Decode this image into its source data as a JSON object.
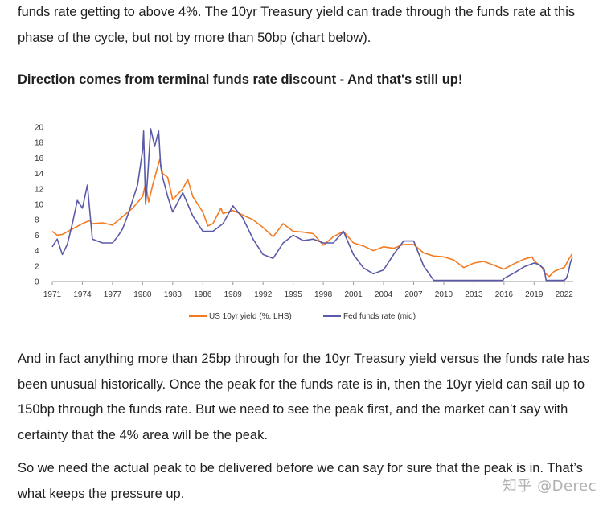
{
  "article": {
    "p_top": "funds rate getting to above 4%. The 10yr Treasury yield can trade through the funds rate at this phase of the cycle, but not by more than 50bp (chart below).",
    "heading": "Direction comes from terminal funds rate discount - And that's still up!",
    "p_mid": "And in fact anything more than 25bp through for the 10yr Treasury yield versus the funds rate has been unusual historically. Once the peak for the funds rate is in, then the 10yr yield can sail up to 150bp through the funds rate. But we need to see the peak first, and the market can’t say with certainty that the 4% area will be the peak.",
    "p_bot": "So we need the actual peak to be delivered before we can say for sure that the peak is in. That’s what keeps the pressure up.",
    "watermark": "知乎 @Derec"
  },
  "chart_data": {
    "type": "line",
    "title": "",
    "xlabel": "",
    "ylabel": "",
    "xlim": [
      1971,
      2022.9
    ],
    "ylim": [
      0,
      20
    ],
    "y_ticks": [
      0,
      2,
      4,
      6,
      8,
      10,
      12,
      14,
      16,
      18,
      20
    ],
    "x_ticks": [
      1971,
      1974,
      1977,
      1980,
      1983,
      1986,
      1989,
      1992,
      1995,
      1998,
      2001,
      2004,
      2007,
      2010,
      2013,
      2016,
      2019,
      2022
    ],
    "grid": false,
    "legend_position": "bottom-center",
    "series": [
      {
        "name": "US 10yr yield (%, LHS)",
        "color": "#f47b20",
        "points": [
          [
            1971,
            6.5
          ],
          [
            1971.5,
            6.0
          ],
          [
            1972,
            6.1
          ],
          [
            1973,
            6.8
          ],
          [
            1974,
            7.5
          ],
          [
            1974.7,
            7.9
          ],
          [
            1975,
            7.5
          ],
          [
            1976,
            7.6
          ],
          [
            1977,
            7.3
          ],
          [
            1978,
            8.4
          ],
          [
            1979,
            9.5
          ],
          [
            1980,
            11.0
          ],
          [
            1980.3,
            12.7
          ],
          [
            1980.6,
            10.3
          ],
          [
            1981,
            12.5
          ],
          [
            1981.7,
            15.8
          ],
          [
            1982,
            14.0
          ],
          [
            1982.5,
            13.5
          ],
          [
            1983,
            10.6
          ],
          [
            1984,
            12.0
          ],
          [
            1984.5,
            13.2
          ],
          [
            1985,
            11.0
          ],
          [
            1986,
            9.0
          ],
          [
            1986.5,
            7.2
          ],
          [
            1987,
            7.5
          ],
          [
            1987.8,
            9.5
          ],
          [
            1988,
            8.8
          ],
          [
            1989,
            9.2
          ],
          [
            1990,
            8.6
          ],
          [
            1991,
            8.0
          ],
          [
            1992,
            7.0
          ],
          [
            1993,
            5.8
          ],
          [
            1994,
            7.5
          ],
          [
            1995,
            6.5
          ],
          [
            1996,
            6.4
          ],
          [
            1997,
            6.2
          ],
          [
            1998,
            4.7
          ],
          [
            1999,
            5.8
          ],
          [
            2000,
            6.5
          ],
          [
            2001,
            5.0
          ],
          [
            2002,
            4.6
          ],
          [
            2003,
            4.0
          ],
          [
            2004,
            4.5
          ],
          [
            2005,
            4.3
          ],
          [
            2006,
            4.8
          ],
          [
            2007,
            4.8
          ],
          [
            2008,
            3.7
          ],
          [
            2009,
            3.3
          ],
          [
            2010,
            3.2
          ],
          [
            2011,
            2.8
          ],
          [
            2012,
            1.8
          ],
          [
            2013,
            2.4
          ],
          [
            2014,
            2.6
          ],
          [
            2015,
            2.1
          ],
          [
            2016,
            1.6
          ],
          [
            2017,
            2.3
          ],
          [
            2018,
            2.9
          ],
          [
            2018.8,
            3.2
          ],
          [
            2019,
            2.7
          ],
          [
            2019.8,
            1.8
          ],
          [
            2020,
            1.2
          ],
          [
            2020.5,
            0.65
          ],
          [
            2021,
            1.3
          ],
          [
            2021.5,
            1.6
          ],
          [
            2022,
            1.8
          ],
          [
            2022.5,
            3.0
          ],
          [
            2022.8,
            3.6
          ]
        ]
      },
      {
        "name": "Fed funds rate (mid)",
        "color": "#5a5aa8",
        "points": [
          [
            1971,
            4.5
          ],
          [
            1971.5,
            5.5
          ],
          [
            1972,
            3.5
          ],
          [
            1972.5,
            4.8
          ],
          [
            1973,
            7.5
          ],
          [
            1973.5,
            10.5
          ],
          [
            1974,
            9.5
          ],
          [
            1974.5,
            12.5
          ],
          [
            1975,
            5.5
          ],
          [
            1976,
            5.0
          ],
          [
            1977,
            5.0
          ],
          [
            1977.5,
            5.8
          ],
          [
            1978,
            6.8
          ],
          [
            1978.5,
            8.5
          ],
          [
            1979,
            10.5
          ],
          [
            1979.5,
            12.5
          ],
          [
            1980,
            17.0
          ],
          [
            1980.1,
            19.5
          ],
          [
            1980.3,
            10.0
          ],
          [
            1980.5,
            13.5
          ],
          [
            1980.8,
            19.8
          ],
          [
            1981.2,
            17.5
          ],
          [
            1981.6,
            19.5
          ],
          [
            1981.8,
            15.0
          ],
          [
            1982,
            13.5
          ],
          [
            1982.5,
            11.0
          ],
          [
            1983,
            9.0
          ],
          [
            1984,
            11.5
          ],
          [
            1985,
            8.5
          ],
          [
            1986,
            6.5
          ],
          [
            1987,
            6.5
          ],
          [
            1988,
            7.5
          ],
          [
            1989,
            9.8
          ],
          [
            1990,
            8.2
          ],
          [
            1991,
            5.5
          ],
          [
            1992,
            3.5
          ],
          [
            1993,
            3.0
          ],
          [
            1994,
            5.0
          ],
          [
            1995,
            6.0
          ],
          [
            1996,
            5.3
          ],
          [
            1997,
            5.5
          ],
          [
            1998,
            5.0
          ],
          [
            1999,
            5.0
          ],
          [
            2000,
            6.5
          ],
          [
            2001,
            3.5
          ],
          [
            2002,
            1.75
          ],
          [
            2003,
            1.0
          ],
          [
            2004,
            1.5
          ],
          [
            2005,
            3.5
          ],
          [
            2006,
            5.25
          ],
          [
            2007,
            5.25
          ],
          [
            2008,
            2.0
          ],
          [
            2009,
            0.15
          ],
          [
            2012,
            0.15
          ],
          [
            2015.9,
            0.15
          ],
          [
            2016,
            0.4
          ],
          [
            2017,
            1.1
          ],
          [
            2018,
            1.9
          ],
          [
            2019,
            2.4
          ],
          [
            2019.5,
            2.2
          ],
          [
            2020,
            1.6
          ],
          [
            2020.2,
            0.15
          ],
          [
            2022,
            0.15
          ],
          [
            2022.2,
            0.4
          ],
          [
            2022.4,
            1.1
          ],
          [
            2022.6,
            2.4
          ],
          [
            2022.8,
            3.1
          ]
        ]
      }
    ]
  }
}
